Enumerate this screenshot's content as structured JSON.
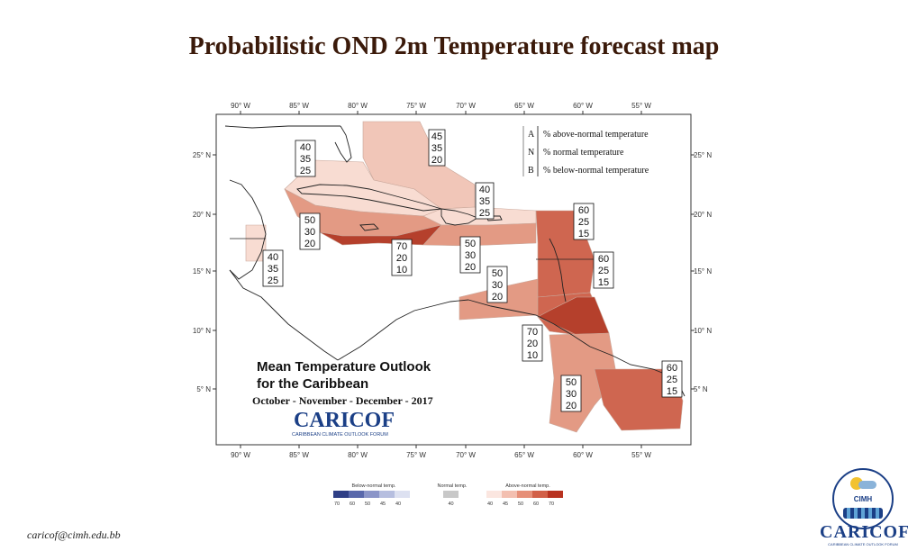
{
  "title": "Probabilistic OND 2m Temperature forecast map",
  "footer_email": "caricof@cimh.edu.bb",
  "map": {
    "lon_ticks": [
      "90° W",
      "85° W",
      "80° W",
      "75° W",
      "70° W",
      "65° W",
      "60° W",
      "55° W"
    ],
    "lat_ticks": [
      "25° N",
      "20° N",
      "15° N",
      "10° N",
      "5° N"
    ],
    "legend_box": {
      "rows": [
        {
          "key": "A",
          "desc": "% above-normal temperature"
        },
        {
          "key": "N",
          "desc": "% normal temperature"
        },
        {
          "key": "B",
          "desc": "% below-normal temperature"
        }
      ]
    },
    "inset_title_line1": "Mean Temperature Outlook",
    "inset_title_line2": "for the Caribbean",
    "inset_period": "October - November - December - 2017",
    "inset_logo": "CARICOF",
    "inset_logo_sub": "CARIBBEAN CLIMATE OUTLOOK FORUM",
    "probability_labels": [
      {
        "id": "bahamas",
        "values": [
          "45",
          "35",
          "20"
        ]
      },
      {
        "id": "west-cuba",
        "values": [
          "40",
          "35",
          "25"
        ]
      },
      {
        "id": "northeast-caribbean",
        "values": [
          "40",
          "35",
          "25"
        ]
      },
      {
        "id": "jamaica-west",
        "values": [
          "50",
          "30",
          "20"
        ]
      },
      {
        "id": "yucatan",
        "values": [
          "40",
          "35",
          "25"
        ]
      },
      {
        "id": "jamaica-haiti",
        "values": [
          "70",
          "20",
          "10"
        ]
      },
      {
        "id": "hispaniola-pr",
        "values": [
          "50",
          "30",
          "20"
        ]
      },
      {
        "id": "eastern-caribbean-sea",
        "values": [
          "50",
          "30",
          "20"
        ]
      },
      {
        "id": "leewards",
        "values": [
          "60",
          "25",
          "15"
        ]
      },
      {
        "id": "windwards",
        "values": [
          "60",
          "25",
          "15"
        ]
      },
      {
        "id": "trinidad-guyana",
        "values": [
          "70",
          "20",
          "10"
        ]
      },
      {
        "id": "guyana",
        "values": [
          "50",
          "30",
          "20"
        ]
      },
      {
        "id": "suriname-fg",
        "values": [
          "60",
          "25",
          "15"
        ]
      }
    ]
  },
  "colorbar": {
    "below_label": "Below-normal temp.",
    "normal_label": "Normal temp.",
    "above_label": "Above-normal temp.",
    "below_ticks": [
      "70",
      "60",
      "50",
      "45",
      "40"
    ],
    "normal_ticks": [
      "40"
    ],
    "above_ticks": [
      "40",
      "45",
      "50",
      "60",
      "70"
    ],
    "below_colors": [
      "#2f3f86",
      "#5968ab",
      "#8b95c8",
      "#b6bedf",
      "#dde1f1"
    ],
    "normal_color": "#c8c8c8",
    "above_colors": [
      "#fbe6e0",
      "#f3bfb0",
      "#e68f78",
      "#d26048",
      "#b83220"
    ]
  },
  "logos": {
    "cimh_text": "CIMH",
    "caricof_text": "CARICOF",
    "caricof_sub": "CARIBBEAN CLIMATE OUTLOOK FORUM"
  },
  "colors": {
    "p45": "#f1c6b8",
    "p40": "#f8dcd2",
    "p50": "#e39a84",
    "p60": "#cf6650",
    "p70": "#b5402c",
    "title": "#3b1a0a",
    "brand": "#1b3f86"
  }
}
